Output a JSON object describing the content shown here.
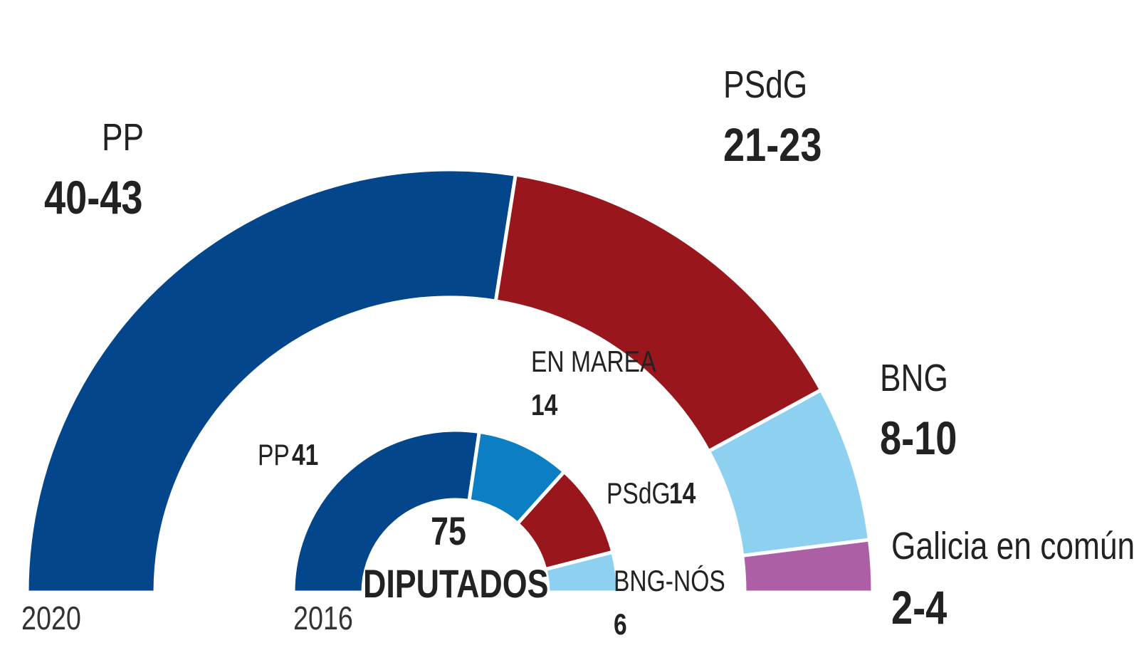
{
  "chart_data": [
    {
      "type": "pie",
      "variant": "semicircle",
      "caption": "2020",
      "segments": [
        {
          "party": "PP",
          "seats": "40-43",
          "value": 41.5,
          "color": "#03468B"
        },
        {
          "party": "PSdG",
          "seats": "21-23",
          "value": 22,
          "color": "#99161D"
        },
        {
          "party": "BNG",
          "seats": "8-10",
          "value": 9,
          "color": "#8ED0F0"
        },
        {
          "party": "Galicia en común",
          "seats": "2-4",
          "value": 3,
          "color": "#AC5FA5"
        }
      ]
    },
    {
      "type": "pie",
      "variant": "semicircle",
      "caption": "2016",
      "total": "75",
      "total_label": "DIPUTADOS",
      "segments": [
        {
          "party": "PP",
          "seats": "41",
          "value": 41,
          "color": "#03468B"
        },
        {
          "party": "EN MAREA",
          "seats": "14",
          "value": 14,
          "color": "#0B7EC4"
        },
        {
          "party": "PSdG",
          "seats": "14",
          "value": 14,
          "color": "#99161D"
        },
        {
          "party": "BNG-NÓS",
          "seats": "6",
          "value": 6,
          "color": "#8ED0F0"
        }
      ]
    }
  ]
}
